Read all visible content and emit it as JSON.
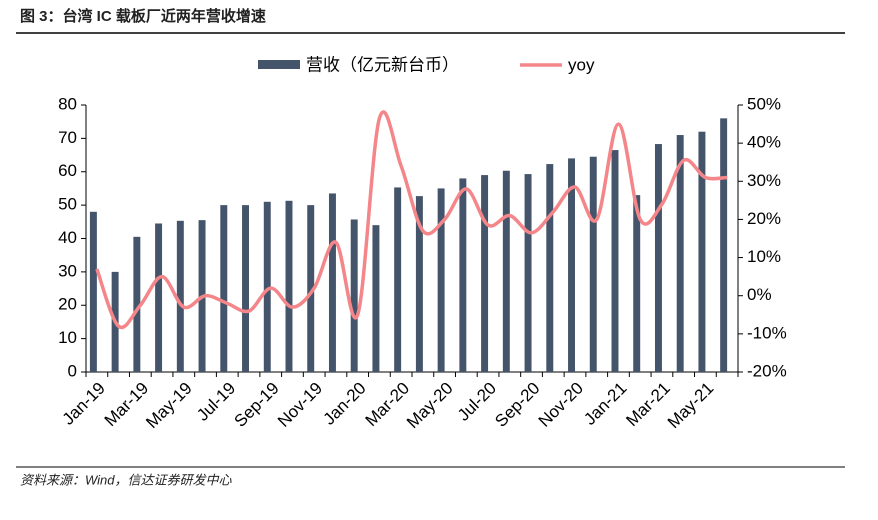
{
  "chart_data": {
    "type": "bar_line",
    "title": "图 3：台湾 IC 载板厂近两年营收增速",
    "source": "资料来源：Wind，信达证券研发中心",
    "categories": [
      "Jan-19",
      null,
      "Mar-19",
      null,
      "May-19",
      null,
      "Jul-19",
      null,
      "Sep-19",
      null,
      "Nov-19",
      null,
      "Jan-20",
      null,
      "Mar-20",
      null,
      "May-20",
      null,
      "Jul-20",
      null,
      "Sep-20",
      null,
      "Nov-20",
      null,
      "Jan-21",
      null,
      "Mar-21",
      null,
      "May-21",
      null
    ],
    "series": [
      {
        "name": "营收（亿元新台币）",
        "color": "#44546a",
        "values": [
          48,
          30,
          40.5,
          44.5,
          45.3,
          45.5,
          50,
          50,
          51,
          51.3,
          50,
          53.5,
          45.7,
          44,
          55.3,
          52.7,
          55,
          58,
          59,
          60.3,
          59.3,
          62.3,
          64,
          64.5,
          66.5,
          53,
          68.3,
          71,
          72,
          76
        ]
      },
      {
        "name": "yoy",
        "color": "#f4868a",
        "axis": "y2",
        "values": [
          7,
          -8,
          -2.5,
          5,
          -3,
          0,
          -2,
          -4,
          2,
          -3,
          2,
          14,
          -5,
          46.5,
          34,
          17,
          20,
          28,
          18.5,
          21,
          16.5,
          22,
          28.5,
          20,
          45,
          20,
          24,
          35.5,
          31,
          31
        ]
      }
    ],
    "ylim": [
      0,
      80
    ],
    "yticks": [
      0,
      10,
      20,
      30,
      40,
      50,
      60,
      70,
      80
    ],
    "y2lim": [
      -20,
      50
    ],
    "y2ticks": [
      {
        "value": -20,
        "label": "-20%"
      },
      {
        "value": -10,
        "label": "-10%"
      },
      {
        "value": 0,
        "label": "0%"
      },
      {
        "value": 10,
        "label": "10%"
      },
      {
        "value": 20,
        "label": "20%"
      },
      {
        "value": 30,
        "label": "30%"
      },
      {
        "value": 40,
        "label": "40%"
      },
      {
        "value": 50,
        "label": "50%"
      }
    ]
  }
}
